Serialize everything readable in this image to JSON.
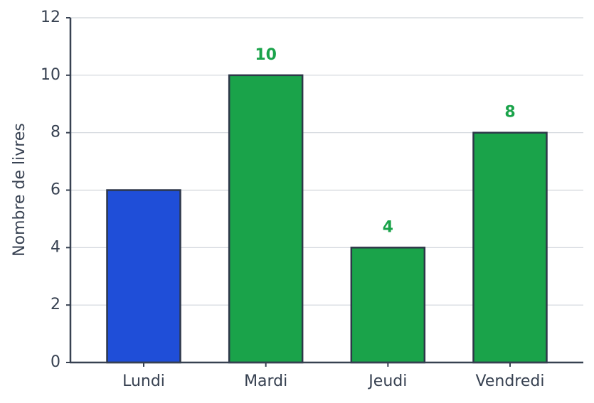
{
  "chart_data": {
    "type": "bar",
    "y_label": "Nombre de livres",
    "categories": [
      "Lundi",
      "Mardi",
      "Jeudi",
      "Vendredi"
    ],
    "values": [
      6,
      10,
      4,
      8
    ],
    "value_labels": [
      null,
      "10",
      "4",
      "8"
    ],
    "colors": [
      "#1f4ed8",
      "#1aa34a",
      "#1aa34a",
      "#1aa34a"
    ],
    "edge_color": "#2d3748",
    "label_color": "#1aa34a",
    "ylim": [
      0,
      12
    ],
    "yticks": [
      0,
      2,
      4,
      6,
      8,
      10,
      12
    ],
    "grid": true
  }
}
